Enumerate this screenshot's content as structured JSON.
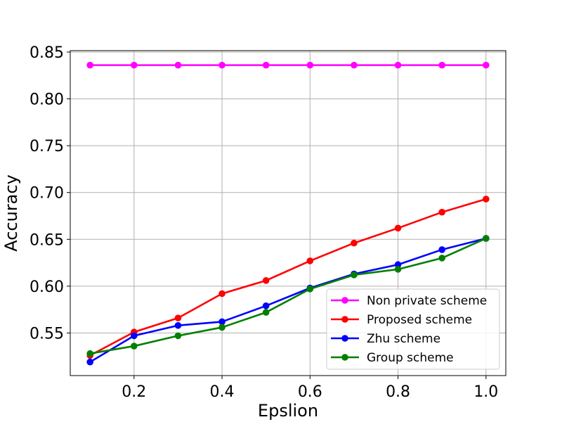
{
  "chart_data": {
    "type": "line",
    "title": "",
    "xlabel": "Epslion",
    "ylabel": "Accuracy",
    "xlim": [
      0.055,
      1.045
    ],
    "ylim": [
      0.5045,
      0.8515
    ],
    "x_ticks": [
      0.2,
      0.4,
      0.6,
      0.8,
      1.0
    ],
    "x_tick_labels": [
      "0.2",
      "0.4",
      "0.6",
      "0.8",
      "1.0"
    ],
    "y_ticks": [
      0.55,
      0.6,
      0.65,
      0.7,
      0.75,
      0.8,
      0.85
    ],
    "y_tick_labels": [
      "0.55",
      "0.60",
      "0.65",
      "0.70",
      "0.75",
      "0.80",
      "0.85"
    ],
    "grid": true,
    "legend_position": "lower-right",
    "x": [
      0.1,
      0.2,
      0.3,
      0.4,
      0.5,
      0.6,
      0.7,
      0.8,
      0.9,
      1.0
    ],
    "series": [
      {
        "name": "Non private scheme",
        "color": "#ff00ff",
        "values": [
          0.836,
          0.836,
          0.836,
          0.836,
          0.836,
          0.836,
          0.836,
          0.836,
          0.836,
          0.836
        ]
      },
      {
        "name": "Proposed scheme",
        "color": "#ff0000",
        "values": [
          0.526,
          0.551,
          0.566,
          0.592,
          0.606,
          0.627,
          0.646,
          0.662,
          0.679,
          0.693
        ]
      },
      {
        "name": "Zhu scheme",
        "color": "#0000ff",
        "values": [
          0.519,
          0.547,
          0.558,
          0.562,
          0.579,
          0.598,
          0.613,
          0.623,
          0.639,
          0.651
        ]
      },
      {
        "name": "Group scheme",
        "color": "#008000",
        "values": [
          0.528,
          0.536,
          0.547,
          0.556,
          0.572,
          0.597,
          0.612,
          0.618,
          0.63,
          0.651
        ]
      }
    ]
  }
}
